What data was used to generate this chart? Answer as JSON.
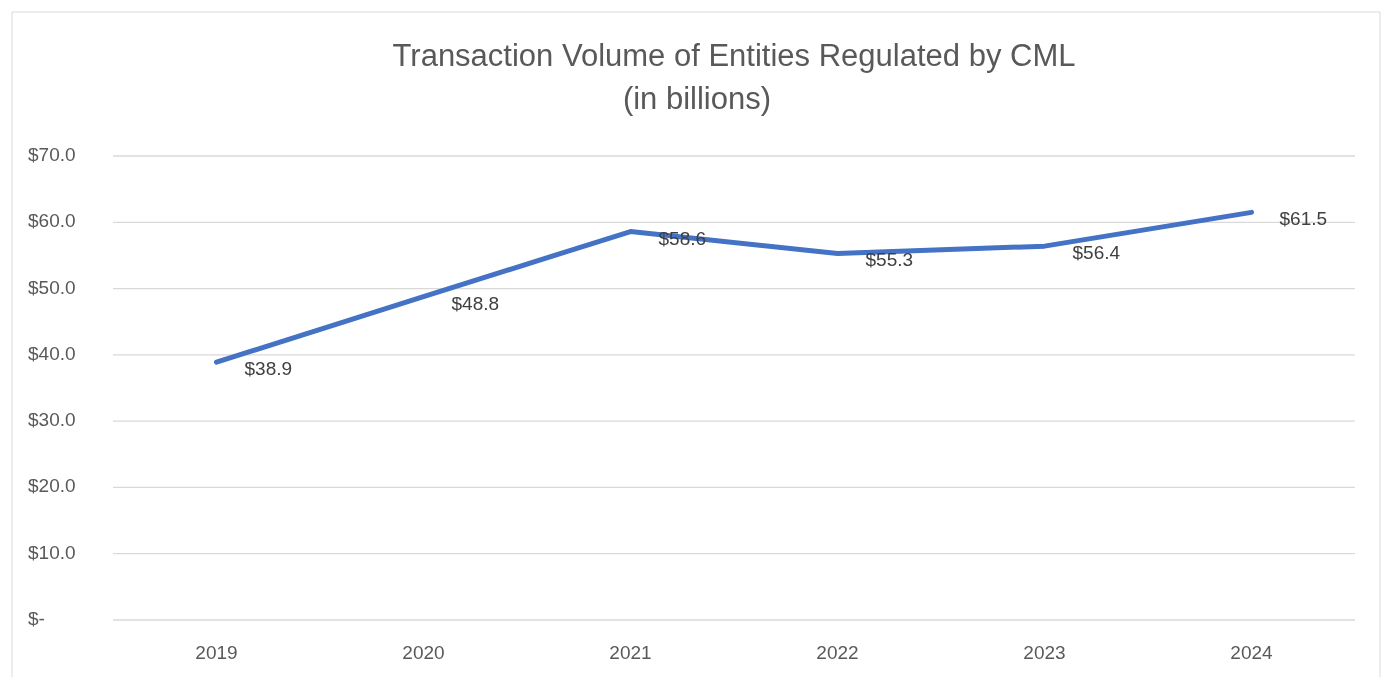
{
  "chart_data": {
    "type": "line",
    "title": "Transaction Volume of Entities Regulated by CML",
    "subtitle": "(in billions)",
    "categories": [
      "2019",
      "2020",
      "2021",
      "2022",
      "2023",
      "2024"
    ],
    "series": [
      {
        "color": "#4472c4",
        "values": [
          38.9,
          48.8,
          58.6,
          55.3,
          56.4,
          61.5
        ],
        "value_labels": [
          "$38.9",
          "$48.8",
          "$58.6",
          "$55.3",
          "$56.4",
          "$61.5"
        ]
      }
    ],
    "ylim": [
      0,
      70
    ],
    "yticks": [
      {
        "value": 0,
        "label": "$-"
      },
      {
        "value": 10,
        "label": "$10.0"
      },
      {
        "value": 20,
        "label": "$20.0"
      },
      {
        "value": 30,
        "label": "$30.0"
      },
      {
        "value": 40,
        "label": "$40.0"
      },
      {
        "value": 50,
        "label": "$50.0"
      },
      {
        "value": 60,
        "label": "$60.0"
      },
      {
        "value": 70,
        "label": "$70.0"
      }
    ],
    "grid": "y",
    "marker": "none",
    "line_style": "solid"
  }
}
